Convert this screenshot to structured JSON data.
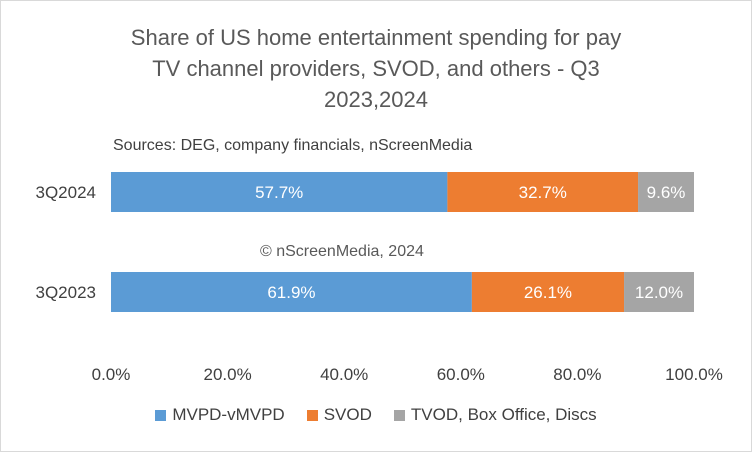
{
  "chart_data": {
    "type": "bar",
    "orientation": "horizontal",
    "stacked": true,
    "title_lines": [
      "Share of US home entertainment spending for pay",
      "TV channel providers, SVOD, and others -  Q3",
      "2023,2024"
    ],
    "source_note": "Sources: DEG, company financials, nScreenMedia",
    "watermark": "© nScreenMedia, 2024",
    "categories": [
      "3Q2024",
      "3Q2023"
    ],
    "series": [
      {
        "name": "MVPD-vMVPD",
        "values": [
          57.7,
          61.9
        ],
        "labels": [
          "57.7%",
          "61.9%"
        ],
        "color": "#5b9bd5"
      },
      {
        "name": "SVOD",
        "values": [
          32.7,
          26.1
        ],
        "labels": [
          "32.7%",
          "26.1%"
        ],
        "color": "#ed7d31"
      },
      {
        "name": "TVOD, Box Office, Discs",
        "values": [
          9.6,
          12.0
        ],
        "labels": [
          "9.6%",
          "12.0%"
        ],
        "color": "#a5a5a5"
      }
    ],
    "xlim": [
      0,
      100
    ],
    "x_ticks": [
      0,
      20,
      40,
      60,
      80,
      100
    ],
    "x_tick_labels": [
      "0.0%",
      "20.0%",
      "40.0%",
      "60.0%",
      "80.0%",
      "100.0%"
    ],
    "grid": false,
    "legend_position": "bottom"
  }
}
